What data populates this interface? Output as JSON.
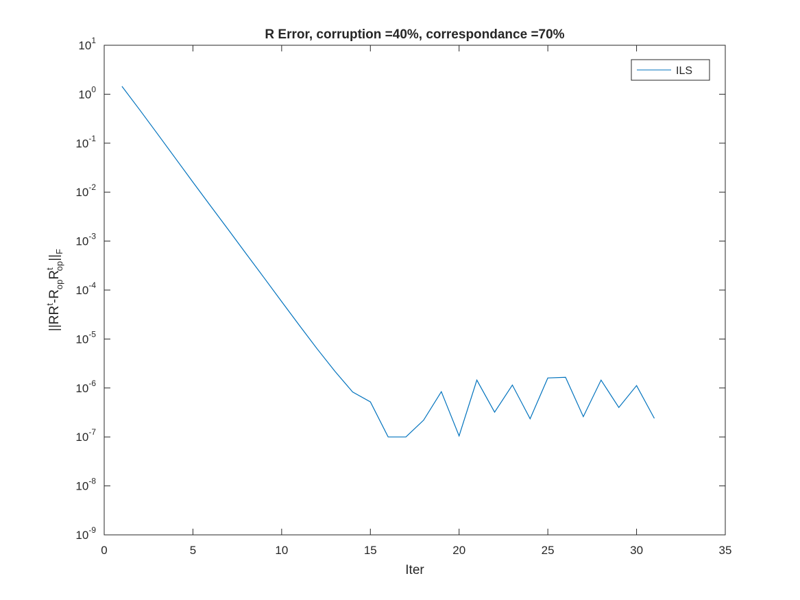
{
  "chart_data": {
    "type": "line",
    "title": "R Error, corruption =40%, correspondance =70%",
    "xlabel": "Iter",
    "ylabel": "||RR^t-R_op R_op^t||_F",
    "ylabel_parts": {
      "p1": "||RR",
      "sup1": "t",
      "p2": "-R",
      "sub1": "op",
      "p3": "R",
      "sup2": "t",
      "sub2": "op",
      "p4": "||",
      "sub3": "F"
    },
    "xlim": [
      0,
      35
    ],
    "ylim": [
      1e-09,
      10
    ],
    "yscale": "log",
    "grid": false,
    "legend_position": "top-right",
    "x_ticks": [
      0,
      5,
      10,
      15,
      20,
      25,
      30,
      35
    ],
    "y_ticks": [
      {
        "value": 10.0,
        "base": "10",
        "exp": "1"
      },
      {
        "value": 1.0,
        "base": "10",
        "exp": "0"
      },
      {
        "value": 0.1,
        "base": "10",
        "exp": "-1"
      },
      {
        "value": 0.01,
        "base": "10",
        "exp": "-2"
      },
      {
        "value": 0.001,
        "base": "10",
        "exp": "-3"
      },
      {
        "value": 0.0001,
        "base": "10",
        "exp": "-4"
      },
      {
        "value": 1e-05,
        "base": "10",
        "exp": "-5"
      },
      {
        "value": 1e-06,
        "base": "10",
        "exp": "-6"
      },
      {
        "value": 1e-07,
        "base": "10",
        "exp": "-7"
      },
      {
        "value": 1e-08,
        "base": "10",
        "exp": "-8"
      },
      {
        "value": 1e-09,
        "base": "10",
        "exp": "-9"
      }
    ],
    "series": [
      {
        "name": "ILS",
        "color": "#0072BD",
        "x": [
          1,
          2,
          3,
          4,
          5,
          6,
          7,
          8,
          9,
          10,
          11,
          12,
          13,
          14,
          15,
          16,
          17,
          18,
          19,
          20,
          21,
          22,
          23,
          24,
          25,
          26,
          27,
          28,
          29,
          30,
          31
        ],
        "y": [
          1.45,
          0.48,
          0.155,
          0.05,
          0.016,
          0.0052,
          0.0017,
          0.00055,
          0.00018,
          5.8e-05,
          1.9e-05,
          6.3e-06,
          2.2e-06,
          8.3e-07,
          5.2e-07,
          1e-07,
          1e-07,
          2.2e-07,
          8.4e-07,
          1.05e-07,
          1.45e-06,
          3.2e-07,
          1.15e-06,
          2.35e-07,
          1.6e-06,
          1.65e-06,
          2.6e-07,
          1.45e-06,
          4e-07,
          1.12e-06,
          2.4e-07
        ]
      }
    ]
  }
}
